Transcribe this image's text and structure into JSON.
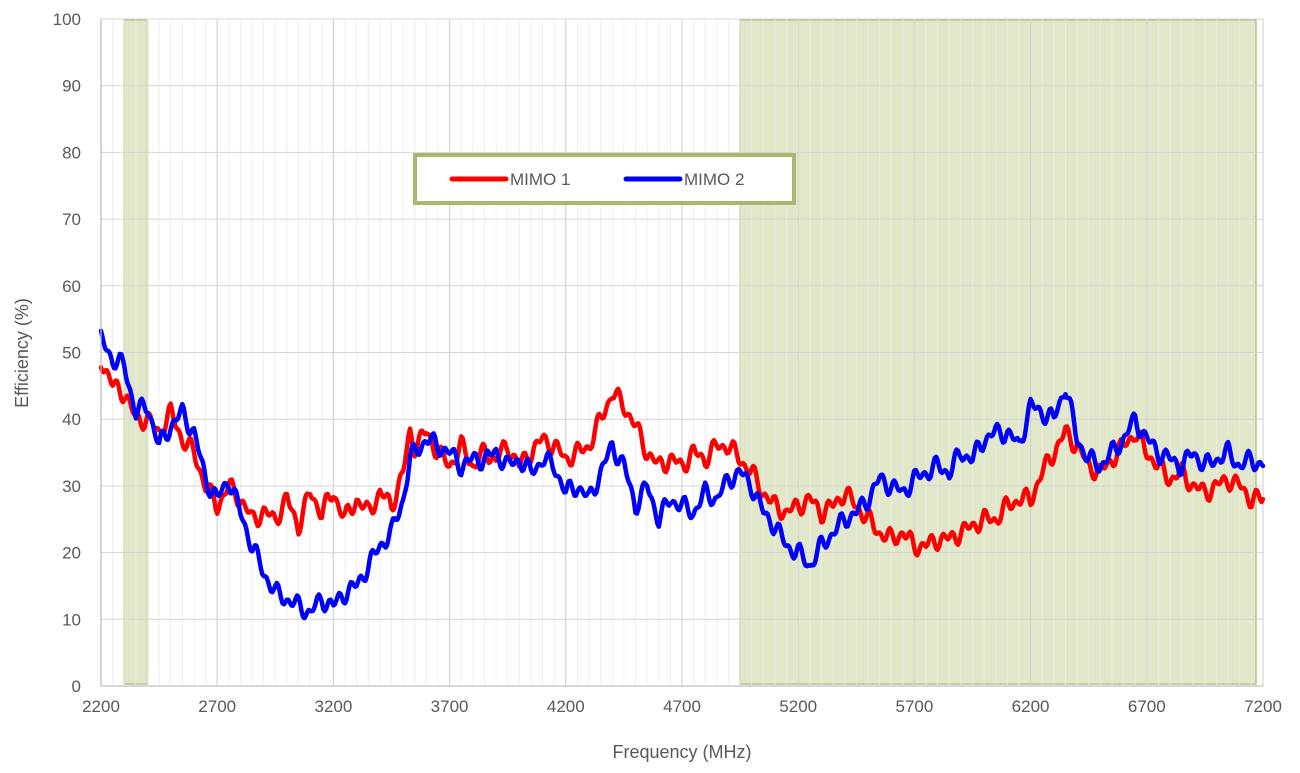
{
  "chart_data": {
    "type": "line",
    "xlabel": "Frequency (MHz)",
    "ylabel": "Efficiency (%)",
    "xlim": [
      2200,
      7200
    ],
    "ylim": [
      0,
      100
    ],
    "x_ticks": [
      "2200",
      "2700",
      "3200",
      "3700",
      "4200",
      "4700",
      "5200",
      "5700",
      "6200",
      "6700",
      "7200"
    ],
    "y_ticks": [
      "0",
      "10",
      "20",
      "30",
      "40",
      "50",
      "60",
      "70",
      "80",
      "90",
      "100"
    ],
    "grid": true,
    "legend_position": "top-center",
    "highlight_bands": [
      {
        "from": 2300,
        "to": 2400
      },
      {
        "from": 4950,
        "to": 7170
      }
    ],
    "series": [
      {
        "name": "MIMO 1",
        "color": "#ff0000",
        "points": [
          [
            2200,
            49
          ],
          [
            2250,
            45
          ],
          [
            2300,
            44
          ],
          [
            2350,
            40
          ],
          [
            2400,
            40
          ],
          [
            2450,
            38
          ],
          [
            2500,
            41
          ],
          [
            2550,
            37
          ],
          [
            2600,
            35
          ],
          [
            2650,
            30
          ],
          [
            2700,
            27
          ],
          [
            2750,
            30
          ],
          [
            2800,
            28
          ],
          [
            2850,
            25
          ],
          [
            2900,
            26
          ],
          [
            2950,
            25
          ],
          [
            3000,
            28
          ],
          [
            3050,
            24
          ],
          [
            3100,
            29
          ],
          [
            3150,
            26
          ],
          [
            3200,
            29
          ],
          [
            3250,
            25
          ],
          [
            3300,
            28
          ],
          [
            3350,
            26
          ],
          [
            3400,
            29
          ],
          [
            3450,
            27
          ],
          [
            3500,
            32
          ],
          [
            3530,
            38
          ],
          [
            3550,
            36
          ],
          [
            3600,
            38
          ],
          [
            3650,
            35
          ],
          [
            3700,
            33
          ],
          [
            3750,
            36
          ],
          [
            3800,
            33
          ],
          [
            3850,
            35
          ],
          [
            3900,
            34
          ],
          [
            3950,
            36
          ],
          [
            4000,
            33
          ],
          [
            4050,
            35
          ],
          [
            4100,
            37
          ],
          [
            4150,
            36
          ],
          [
            4200,
            34
          ],
          [
            4250,
            35
          ],
          [
            4300,
            36
          ],
          [
            4350,
            40
          ],
          [
            4400,
            44
          ],
          [
            4450,
            42
          ],
          [
            4500,
            39
          ],
          [
            4550,
            35
          ],
          [
            4600,
            33
          ],
          [
            4650,
            34
          ],
          [
            4700,
            33
          ],
          [
            4750,
            35
          ],
          [
            4800,
            34
          ],
          [
            4850,
            36
          ],
          [
            4900,
            36
          ],
          [
            4950,
            34
          ],
          [
            5000,
            32
          ],
          [
            5050,
            29
          ],
          [
            5100,
            27
          ],
          [
            5150,
            26
          ],
          [
            5200,
            27
          ],
          [
            5250,
            28
          ],
          [
            5300,
            26
          ],
          [
            5350,
            27
          ],
          [
            5400,
            29
          ],
          [
            5450,
            27
          ],
          [
            5500,
            25
          ],
          [
            5550,
            23
          ],
          [
            5600,
            22
          ],
          [
            5650,
            23
          ],
          [
            5700,
            21
          ],
          [
            5750,
            21
          ],
          [
            5800,
            22
          ],
          [
            5850,
            22
          ],
          [
            5900,
            23
          ],
          [
            5950,
            24
          ],
          [
            6000,
            25
          ],
          [
            6050,
            25
          ],
          [
            6100,
            27
          ],
          [
            6150,
            28
          ],
          [
            6200,
            28
          ],
          [
            6250,
            32
          ],
          [
            6300,
            35
          ],
          [
            6350,
            38
          ],
          [
            6400,
            36
          ],
          [
            6450,
            33
          ],
          [
            6500,
            32
          ],
          [
            6550,
            34
          ],
          [
            6600,
            36
          ],
          [
            6650,
            38
          ],
          [
            6700,
            35
          ],
          [
            6750,
            33
          ],
          [
            6800,
            31
          ],
          [
            6850,
            32
          ],
          [
            6900,
            30
          ],
          [
            6950,
            29
          ],
          [
            7000,
            30
          ],
          [
            7050,
            31
          ],
          [
            7100,
            30
          ],
          [
            7150,
            28
          ],
          [
            7200,
            28
          ]
        ]
      },
      {
        "name": "MIMO 2",
        "color": "#0000ff",
        "points": [
          [
            2200,
            52
          ],
          [
            2250,
            49
          ],
          [
            2300,
            48
          ],
          [
            2350,
            41
          ],
          [
            2400,
            42
          ],
          [
            2450,
            36
          ],
          [
            2500,
            39
          ],
          [
            2550,
            41
          ],
          [
            2600,
            38
          ],
          [
            2650,
            31
          ],
          [
            2700,
            28
          ],
          [
            2750,
            31
          ],
          [
            2800,
            26
          ],
          [
            2850,
            21
          ],
          [
            2900,
            17
          ],
          [
            2950,
            14
          ],
          [
            3000,
            13
          ],
          [
            3050,
            12
          ],
          [
            3100,
            11
          ],
          [
            3150,
            13
          ],
          [
            3200,
            12
          ],
          [
            3250,
            14
          ],
          [
            3300,
            15
          ],
          [
            3350,
            18
          ],
          [
            3400,
            21
          ],
          [
            3450,
            23
          ],
          [
            3500,
            28
          ],
          [
            3530,
            34
          ],
          [
            3550,
            35
          ],
          [
            3600,
            37
          ],
          [
            3650,
            36
          ],
          [
            3700,
            35
          ],
          [
            3750,
            33
          ],
          [
            3800,
            34
          ],
          [
            3850,
            34
          ],
          [
            3900,
            35
          ],
          [
            3950,
            33
          ],
          [
            4000,
            34
          ],
          [
            4050,
            32
          ],
          [
            4100,
            34
          ],
          [
            4150,
            33
          ],
          [
            4200,
            29
          ],
          [
            4250,
            30
          ],
          [
            4300,
            28
          ],
          [
            4350,
            32
          ],
          [
            4400,
            36
          ],
          [
            4450,
            33
          ],
          [
            4500,
            27
          ],
          [
            4550,
            30
          ],
          [
            4600,
            25
          ],
          [
            4650,
            28
          ],
          [
            4700,
            27
          ],
          [
            4750,
            26
          ],
          [
            4800,
            29
          ],
          [
            4850,
            28
          ],
          [
            4900,
            31
          ],
          [
            4950,
            32
          ],
          [
            5000,
            30
          ],
          [
            5050,
            26
          ],
          [
            5100,
            24
          ],
          [
            5150,
            21
          ],
          [
            5200,
            20
          ],
          [
            5250,
            18
          ],
          [
            5300,
            21
          ],
          [
            5350,
            23
          ],
          [
            5400,
            25
          ],
          [
            5450,
            26
          ],
          [
            5500,
            28
          ],
          [
            5550,
            31
          ],
          [
            5600,
            30
          ],
          [
            5650,
            29
          ],
          [
            5700,
            31
          ],
          [
            5750,
            32
          ],
          [
            5800,
            33
          ],
          [
            5850,
            32
          ],
          [
            5900,
            35
          ],
          [
            5950,
            34
          ],
          [
            6000,
            37
          ],
          [
            6050,
            38
          ],
          [
            6100,
            38
          ],
          [
            6150,
            36
          ],
          [
            6200,
            42
          ],
          [
            6250,
            41
          ],
          [
            6300,
            40
          ],
          [
            6350,
            45
          ],
          [
            6400,
            37
          ],
          [
            6450,
            34
          ],
          [
            6500,
            33
          ],
          [
            6550,
            35
          ],
          [
            6600,
            37
          ],
          [
            6650,
            40
          ],
          [
            6700,
            37
          ],
          [
            6750,
            35
          ],
          [
            6800,
            34
          ],
          [
            6850,
            33
          ],
          [
            6900,
            35
          ],
          [
            6950,
            33
          ],
          [
            7000,
            34
          ],
          [
            7050,
            35
          ],
          [
            7100,
            33
          ],
          [
            7150,
            34
          ],
          [
            7200,
            33
          ]
        ]
      }
    ]
  }
}
